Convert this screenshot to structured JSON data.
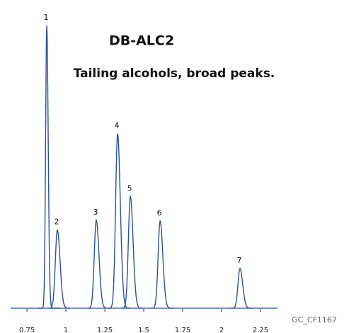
{
  "chart_data": {
    "type": "chromatogram",
    "title": "DB-ALC2",
    "subtitle": "Tailing alcohols, broad peaks.",
    "note": "GC_CF1167",
    "color": "#2d4f9e",
    "peak_labels": [
      "1",
      "2",
      "3",
      "4",
      "5",
      "6",
      "7"
    ],
    "x": [
      0.877,
      0.945,
      1.195,
      1.332,
      1.414,
      1.605,
      2.118
    ],
    "values": [
      404,
      111,
      125,
      249,
      159,
      124,
      56
    ],
    "xlim": [
      0.645,
      2.359
    ],
    "ylim": [
      0,
      410
    ],
    "xticks": [
      0.75,
      1,
      1.25,
      1.5,
      1.75,
      2,
      2.25
    ]
  }
}
